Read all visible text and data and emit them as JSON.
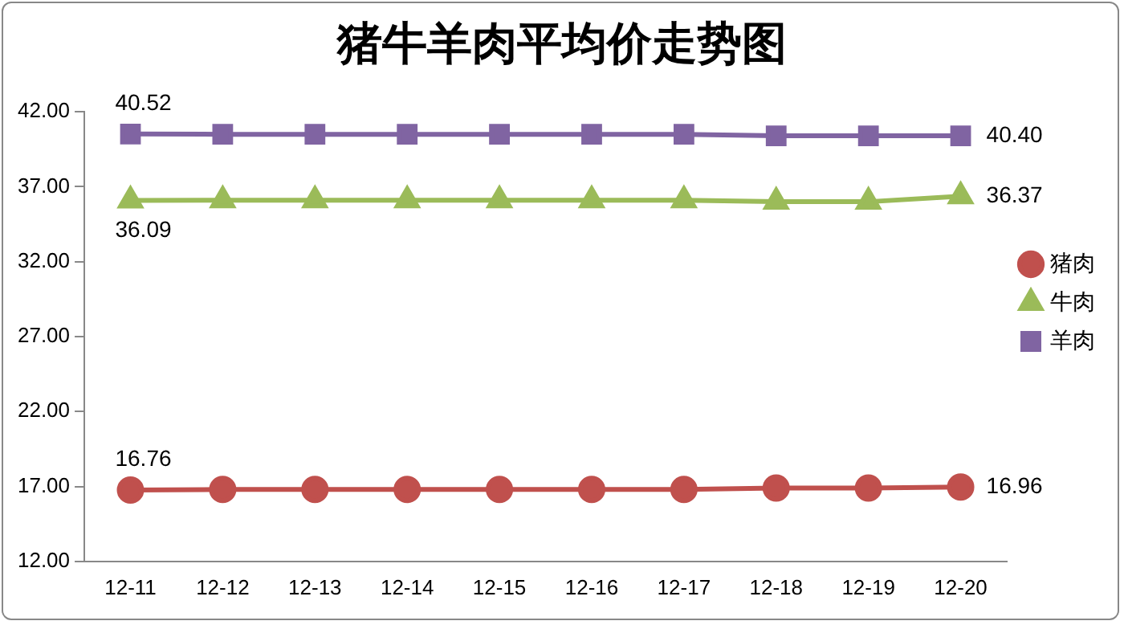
{
  "chart_data": {
    "type": "line",
    "title": "猪牛羊肉平均价走势图",
    "categories": [
      "12-11",
      "12-12",
      "12-13",
      "12-14",
      "12-15",
      "12-16",
      "12-17",
      "12-18",
      "12-19",
      "12-20"
    ],
    "series": [
      {
        "name": "猪肉",
        "color": "#c0504d",
        "marker": "circle",
        "values": [
          16.76,
          16.8,
          16.8,
          16.8,
          16.8,
          16.8,
          16.8,
          16.9,
          16.9,
          16.96
        ],
        "value_labels": [
          "16.76",
          null,
          null,
          null,
          null,
          null,
          null,
          null,
          null,
          "16.96"
        ]
      },
      {
        "name": "牛肉",
        "color": "#9bbb59",
        "marker": "triangle",
        "values": [
          36.09,
          36.1,
          36.1,
          36.1,
          36.1,
          36.1,
          36.1,
          36.0,
          36.0,
          36.37
        ],
        "value_labels": [
          "36.09",
          null,
          null,
          null,
          null,
          null,
          null,
          null,
          null,
          "36.37"
        ]
      },
      {
        "name": "羊肉",
        "color": "#8064a2",
        "marker": "square",
        "values": [
          40.52,
          40.5,
          40.5,
          40.5,
          40.5,
          40.5,
          40.5,
          40.4,
          40.4,
          40.4
        ],
        "value_labels": [
          "40.52",
          null,
          null,
          null,
          null,
          null,
          null,
          null,
          null,
          "40.40"
        ]
      }
    ],
    "ylim": [
      12,
      42
    ],
    "yticks": [
      {
        "value": 12,
        "label": "12.00"
      },
      {
        "value": 17,
        "label": "17.00"
      },
      {
        "value": 22,
        "label": "22.00"
      },
      {
        "value": 27,
        "label": "27.00"
      },
      {
        "value": 32,
        "label": "32.00"
      },
      {
        "value": 37,
        "label": "37.00"
      },
      {
        "value": 42,
        "label": "42.00"
      }
    ],
    "grid": false,
    "legend": "right",
    "line_style": "solid"
  }
}
